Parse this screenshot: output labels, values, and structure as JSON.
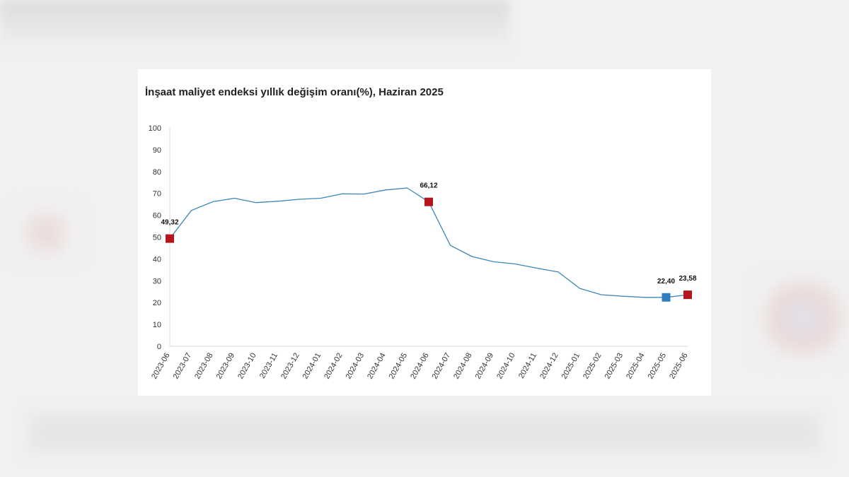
{
  "chart_data": {
    "type": "line",
    "title": "İnşaat maliyet endeksi yıllık değişim oranı(%), Haziran 2025",
    "xlabel": "",
    "ylabel": "",
    "ylim": [
      0,
      100
    ],
    "yticks": [
      0,
      10,
      20,
      30,
      40,
      50,
      60,
      70,
      80,
      90,
      100
    ],
    "categories": [
      "2023-06",
      "2023-07",
      "2023-08",
      "2023-09",
      "2023-10",
      "2023-11",
      "2023-12",
      "2024-01",
      "2024-02",
      "2024-03",
      "2024-04",
      "2024-05",
      "2024-06",
      "2024-07",
      "2024-08",
      "2024-09",
      "2024-10",
      "2024-11",
      "2024-12",
      "2025-01",
      "2025-02",
      "2025-03",
      "2025-04",
      "2025-05",
      "2025-06"
    ],
    "series": [
      {
        "values": [
          49.32,
          62.2,
          66.2,
          67.8,
          65.8,
          66.4,
          67.3,
          67.8,
          69.8,
          69.7,
          71.6,
          72.5,
          66.12,
          46.2,
          41.1,
          38.7,
          37.7,
          35.8,
          34.0,
          26.5,
          23.6,
          22.9,
          22.4,
          22.4,
          23.58
        ],
        "color": "#3a87b8"
      }
    ],
    "highlights": [
      {
        "index": 0,
        "label": "49,32",
        "color": "#b5161e"
      },
      {
        "index": 12,
        "label": "66,12",
        "color": "#b5161e"
      },
      {
        "index": 23,
        "label": "22,40",
        "color": "#2e7ec0"
      },
      {
        "index": 24,
        "label": "23,58",
        "color": "#b5161e"
      }
    ],
    "grid": false,
    "legend": "none"
  }
}
